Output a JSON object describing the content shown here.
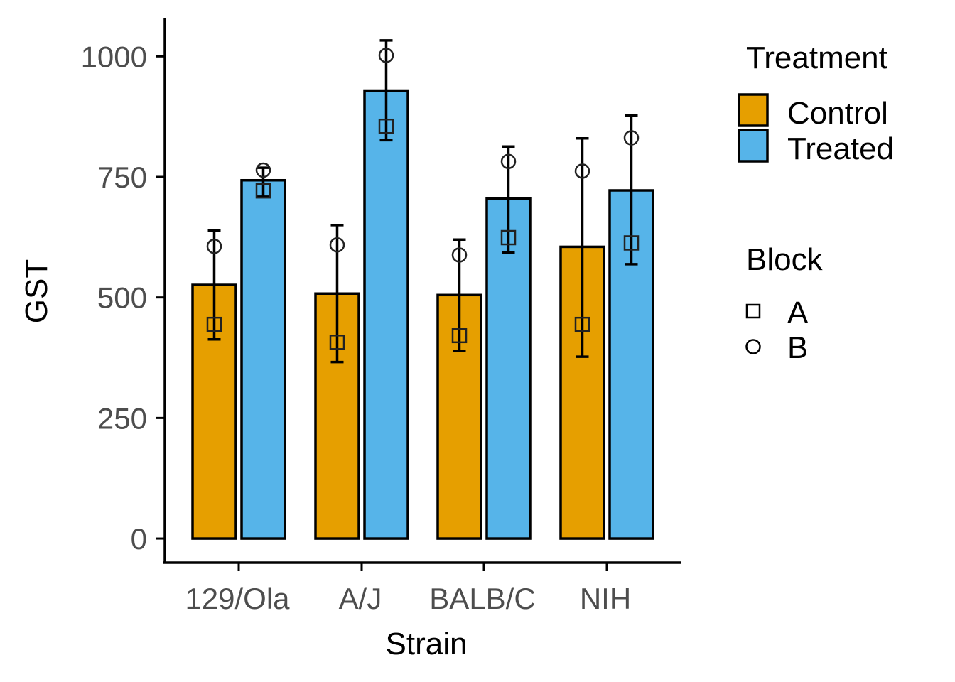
{
  "chart_data": {
    "type": "bar",
    "xlabel": "Strain",
    "ylabel": "GST",
    "ylim": [
      -50,
      1080
    ],
    "yticks": [
      0,
      250,
      500,
      750,
      1000
    ],
    "categories": [
      "129/Ola",
      "A/J",
      "BALB/C",
      "NIH"
    ],
    "series": [
      {
        "name": "Control",
        "color": "#E69F00",
        "values": [
          526,
          508,
          505,
          605
        ],
        "error_low": [
          413,
          366,
          389,
          377
        ],
        "error_high": [
          639,
          650,
          620,
          830
        ],
        "points": [
          {
            "block": "A",
            "value": 444
          },
          {
            "block": "B",
            "value": 606
          },
          {
            "block": "A",
            "value": 407
          },
          {
            "block": "B",
            "value": 609
          },
          {
            "block": "A",
            "value": 421
          },
          {
            "block": "B",
            "value": 588
          },
          {
            "block": "A",
            "value": 444
          },
          {
            "block": "B",
            "value": 762
          }
        ]
      },
      {
        "name": "Treated",
        "color": "#56B4E9",
        "values": [
          743,
          929,
          705,
          722
        ],
        "error_low": [
          709,
          826,
          593,
          569
        ],
        "error_high": [
          769,
          1033,
          813,
          877
        ],
        "points": [
          {
            "block": "A",
            "value": 721
          },
          {
            "block": "B",
            "value": 764
          },
          {
            "block": "A",
            "value": 855
          },
          {
            "block": "B",
            "value": 1002
          },
          {
            "block": "A",
            "value": 624
          },
          {
            "block": "B",
            "value": 782
          },
          {
            "block": "A",
            "value": 613
          },
          {
            "block": "B",
            "value": 831
          }
        ]
      }
    ],
    "legend": {
      "position": "right",
      "fill_title": "Treatment",
      "fill_items": [
        "Control",
        "Treated"
      ],
      "shape_title": "Block",
      "shape_items": [
        {
          "label": "A",
          "shape": "square"
        },
        {
          "label": "B",
          "shape": "circle"
        }
      ]
    },
    "grid": false
  }
}
